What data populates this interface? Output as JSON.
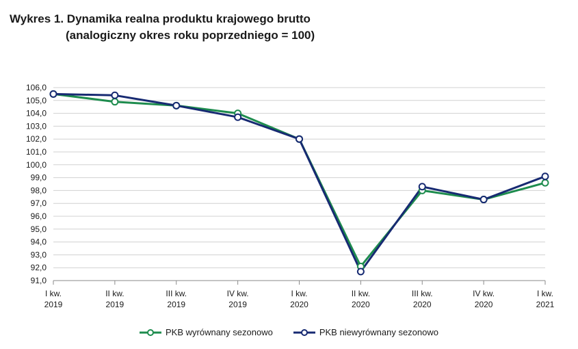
{
  "header": {
    "title_line1": "Wykres 1. Dynamika realna produktu krajowego brutto",
    "title_line2": "(analogiczny okres roku poprzedniego = 100)"
  },
  "chart_data": {
    "type": "line",
    "title": "Wykres 1. Dynamika realna produktu krajowego brutto (analogiczny okres roku poprzedniego = 100)",
    "categories": [
      [
        "I kw.",
        "2019"
      ],
      [
        "II kw.",
        "2019"
      ],
      [
        "III kw.",
        "2019"
      ],
      [
        "IV kw.",
        "2019"
      ],
      [
        "I kw.",
        "2020"
      ],
      [
        "II kw.",
        "2020"
      ],
      [
        "III kw.",
        "2020"
      ],
      [
        "IV kw.",
        "2020"
      ],
      [
        "I kw.",
        "2021"
      ]
    ],
    "yticks": [
      "106,0",
      "105,0",
      "104,0",
      "103,0",
      "102,0",
      "101,0",
      "100,0",
      "99,0",
      "98,0",
      "97,0",
      "96,0",
      "95,0",
      "94,0",
      "93,0",
      "92,0",
      "91,0"
    ],
    "ylim": [
      91,
      106
    ],
    "grid": true,
    "legend_position": "bottom",
    "series": [
      {
        "name": "PKB wyrównany sezonowo",
        "color": "#1e8c4e",
        "values": [
          105.5,
          104.9,
          104.6,
          104.0,
          102.0,
          92.1,
          98.0,
          97.3,
          98.6
        ]
      },
      {
        "name": "PKB niewyrównany sezonowo",
        "color": "#172a72",
        "values": [
          105.5,
          105.4,
          104.6,
          103.7,
          102.0,
          91.7,
          98.3,
          97.3,
          99.1
        ]
      }
    ]
  }
}
